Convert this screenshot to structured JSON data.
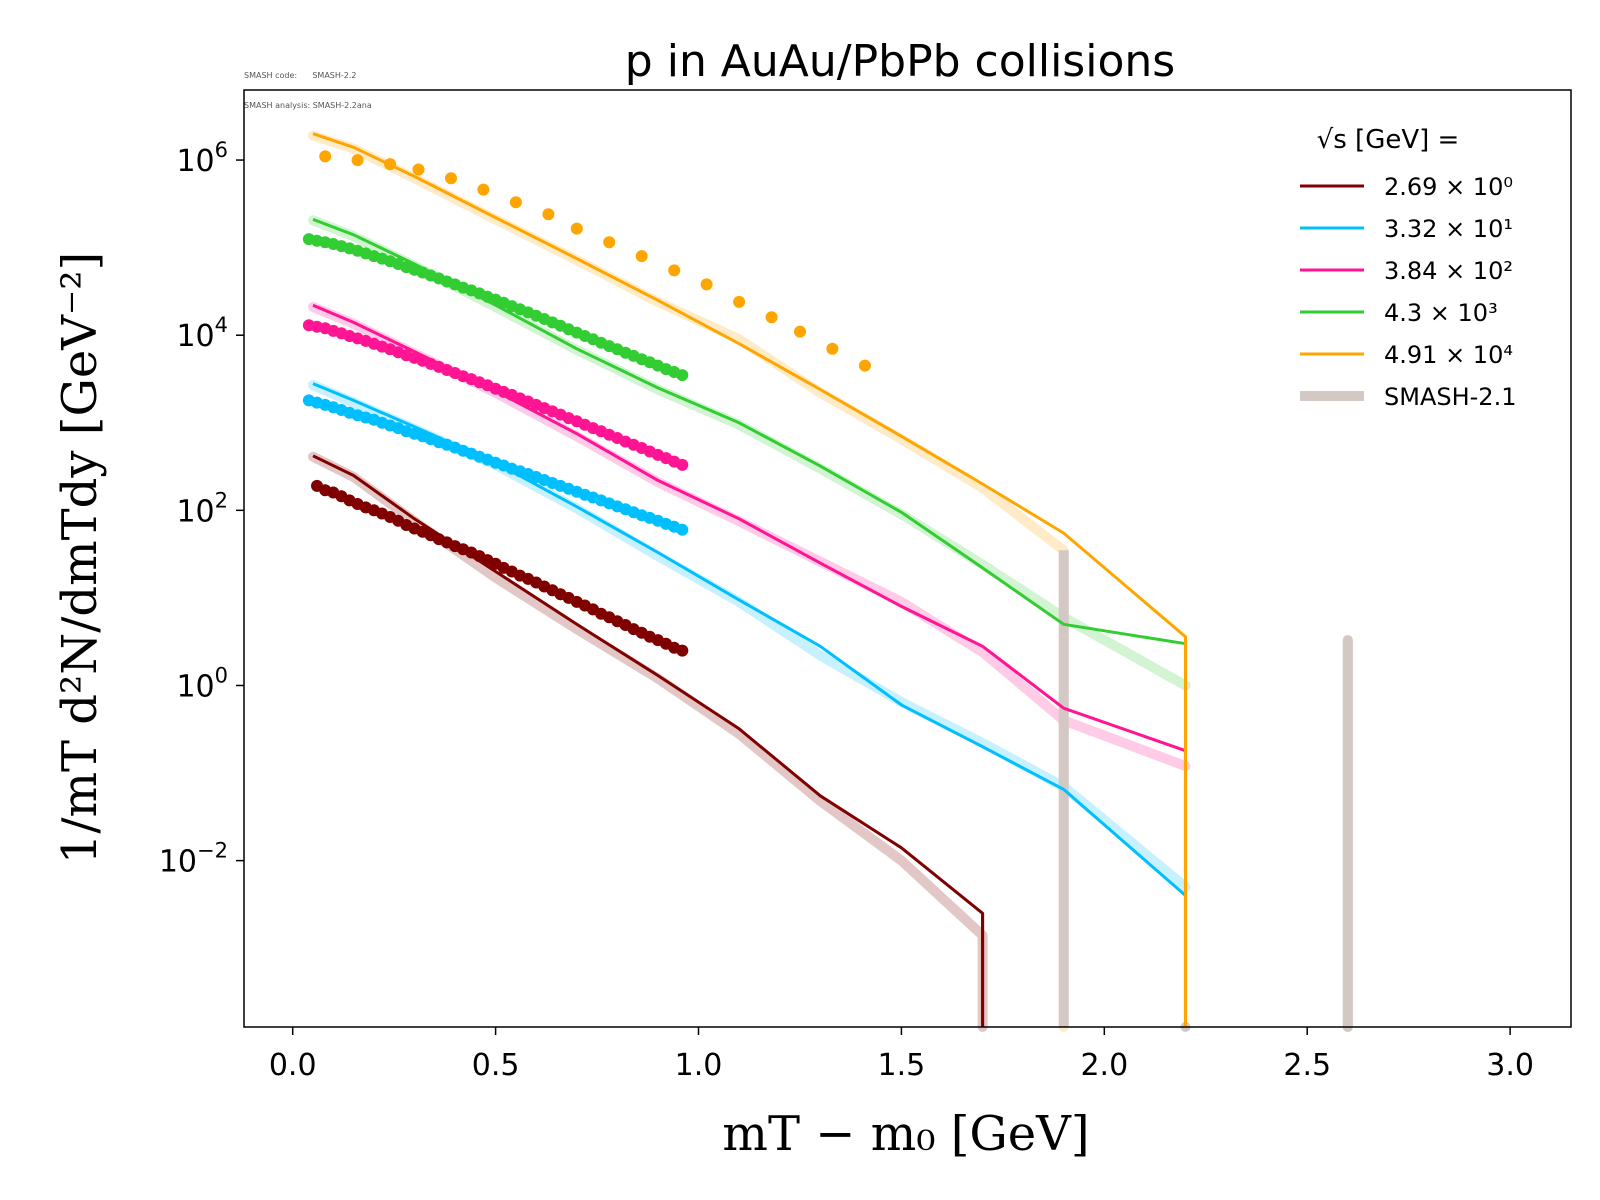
{
  "notes": {
    "code_line": "SMASH code:      SMASH-2.2",
    "analysis_line": "SMASH analysis: SMASH-2.2ana"
  },
  "chart_data": {
    "type": "line",
    "title": "p in AuAu/PbPb collisions",
    "xlabel": "mT − m₀ [GeV]",
    "ylabel": "1/mT d²N/dmTdy [GeV⁻²]",
    "xlim": [
      -0.12,
      3.15
    ],
    "ylim_log10": [
      -3.9,
      6.8
    ],
    "yscale": "log",
    "x_ticks": [
      "0.0",
      "0.5",
      "1.0",
      "1.5",
      "2.0",
      "2.5",
      "3.0"
    ],
    "y_ticks": [
      {
        "base": "10",
        "exp": "6",
        "value": 1000000
      },
      {
        "base": "10",
        "exp": "4",
        "value": 10000
      },
      {
        "base": "10",
        "exp": "2",
        "value": 100
      },
      {
        "base": "10",
        "exp": "0",
        "value": 1
      },
      {
        "base": "10",
        "exp": "−2",
        "value": 0.01
      }
    ],
    "legend": {
      "placement": "top-right",
      "title": "√s  [GeV] =",
      "entries": [
        "2.69 × 10⁰",
        "3.32 × 10¹",
        "3.84 × 10²",
        "4.3 × 10³",
        "4.91 × 10⁴",
        "SMASH-2.1"
      ]
    },
    "colors": {
      "s2_69": "#800000",
      "s33_2": "#00bfff",
      "s384": "#ff1493",
      "s4300": "#32cd32",
      "s49100": "#ffa500",
      "smash21": "#d3c8c4"
    },
    "series": [
      {
        "name": "2.69 × 10⁰",
        "color": "#800000",
        "line": {
          "x": [
            0.05,
            0.15,
            0.3,
            0.5,
            0.7,
            0.9,
            1.1,
            1.3,
            1.5,
            1.7,
            1.7
          ],
          "y": [
            420,
            250,
            80,
            20,
            5,
            1.3,
            0.32,
            0.055,
            0.014,
            0.0025,
            0.0001
          ]
        },
        "smash21": {
          "x": [
            0.05,
            0.15,
            0.3,
            0.5,
            0.7,
            0.9,
            1.1,
            1.3,
            1.5,
            1.7,
            1.7
          ],
          "y": [
            410,
            240,
            75,
            17,
            4.4,
            1.2,
            0.28,
            0.048,
            0.01,
            0.0014,
            0.0001
          ]
        },
        "points": {
          "x": [
            0.06,
            0.08,
            0.1,
            0.12,
            0.14,
            0.16,
            0.18,
            0.2,
            0.22,
            0.24,
            0.26,
            0.28,
            0.3,
            0.32,
            0.34,
            0.36,
            0.38,
            0.4,
            0.42,
            0.44,
            0.46,
            0.48,
            0.5,
            0.52,
            0.54,
            0.56,
            0.58,
            0.6,
            0.62,
            0.64,
            0.66,
            0.68,
            0.7,
            0.72,
            0.74,
            0.76,
            0.78,
            0.8,
            0.82,
            0.84,
            0.86,
            0.88,
            0.9,
            0.92,
            0.94,
            0.96
          ],
          "y": [
            190,
            170,
            160,
            145,
            130,
            118,
            108,
            100,
            92,
            84,
            76,
            68,
            62,
            57,
            52,
            47,
            43,
            39,
            36,
            33,
            30,
            27,
            24.5,
            22,
            20,
            18,
            16.5,
            15,
            13.5,
            12.2,
            11,
            10,
            9,
            8.2,
            7.4,
            6.6,
            6,
            5.4,
            4.9,
            4.4,
            4,
            3.6,
            3.3,
            3,
            2.7,
            2.5
          ]
        }
      },
      {
        "name": "3.32 × 10¹",
        "color": "#00bfff",
        "line": {
          "x": [
            0.05,
            0.15,
            0.3,
            0.5,
            0.7,
            0.9,
            1.1,
            1.3,
            1.5,
            1.7,
            1.9,
            2.2
          ],
          "y": [
            2800,
            1800,
            900,
            350,
            110,
            33,
            9.5,
            2.8,
            0.6,
            0.2,
            0.065,
            0.004
          ]
        },
        "smash21": {
          "x": [
            0.05,
            0.15,
            0.3,
            0.5,
            0.7,
            0.9,
            1.1,
            1.3,
            1.5,
            1.7,
            1.9,
            2.2
          ],
          "y": [
            2700,
            1700,
            850,
            330,
            105,
            30,
            9,
            2.2,
            0.65,
            0.22,
            0.07,
            0.005
          ]
        },
        "points": {
          "x": [
            0.04,
            0.06,
            0.08,
            0.1,
            0.12,
            0.14,
            0.16,
            0.18,
            0.2,
            0.22,
            0.24,
            0.26,
            0.28,
            0.3,
            0.32,
            0.34,
            0.36,
            0.38,
            0.4,
            0.42,
            0.44,
            0.46,
            0.48,
            0.5,
            0.52,
            0.54,
            0.56,
            0.58,
            0.6,
            0.62,
            0.64,
            0.66,
            0.68,
            0.7,
            0.72,
            0.74,
            0.76,
            0.78,
            0.8,
            0.82,
            0.84,
            0.86,
            0.88,
            0.9,
            0.92,
            0.94,
            0.96
          ],
          "y": [
            1800,
            1700,
            1600,
            1500,
            1400,
            1300,
            1220,
            1150,
            1080,
            1000,
            930,
            870,
            800,
            750,
            700,
            650,
            600,
            560,
            520,
            480,
            445,
            410,
            380,
            350,
            325,
            300,
            280,
            260,
            240,
            222,
            205,
            190,
            176,
            163,
            151,
            140,
            130,
            120,
            111,
            103,
            95,
            88,
            82,
            76,
            70,
            65,
            60
          ]
        }
      },
      {
        "name": "3.84 × 10²",
        "color": "#ff1493",
        "line": {
          "x": [
            0.05,
            0.15,
            0.3,
            0.5,
            0.7,
            0.9,
            1.1,
            1.3,
            1.5,
            1.7,
            1.9,
            2.2
          ],
          "y": [
            22000,
            14000,
            6500,
            2300,
            750,
            220,
            80,
            25,
            8,
            2.8,
            0.55,
            0.18
          ]
        },
        "smash21": {
          "x": [
            0.05,
            0.15,
            0.3,
            0.5,
            0.7,
            0.9,
            1.1,
            1.3,
            1.5,
            1.7,
            1.9,
            2.2
          ],
          "y": [
            21000,
            13500,
            6200,
            2200,
            700,
            210,
            75,
            26,
            9,
            2.4,
            0.4,
            0.12
          ]
        },
        "points": {
          "x": [
            0.04,
            0.06,
            0.08,
            0.1,
            0.12,
            0.14,
            0.16,
            0.18,
            0.2,
            0.22,
            0.24,
            0.26,
            0.28,
            0.3,
            0.32,
            0.34,
            0.36,
            0.38,
            0.4,
            0.42,
            0.44,
            0.46,
            0.48,
            0.5,
            0.52,
            0.54,
            0.56,
            0.58,
            0.6,
            0.62,
            0.64,
            0.66,
            0.68,
            0.7,
            0.72,
            0.74,
            0.76,
            0.78,
            0.8,
            0.82,
            0.84,
            0.86,
            0.88,
            0.9,
            0.92,
            0.94,
            0.96
          ],
          "y": [
            13000,
            12500,
            12000,
            11200,
            10500,
            9800,
            9200,
            8600,
            8000,
            7400,
            6900,
            6400,
            5900,
            5500,
            5100,
            4700,
            4350,
            4000,
            3700,
            3400,
            3150,
            2900,
            2680,
            2450,
            2250,
            2080,
            1900,
            1750,
            1600,
            1470,
            1350,
            1240,
            1130,
            1040,
            950,
            870,
            800,
            730,
            670,
            610,
            560,
            515,
            470,
            430,
            395,
            360,
            330
          ]
        }
      },
      {
        "name": "4.3 × 10³",
        "color": "#32cd32",
        "line": {
          "x": [
            0.05,
            0.15,
            0.3,
            0.5,
            0.7,
            0.9,
            1.1,
            1.3,
            1.5,
            1.7,
            1.9,
            2.2
          ],
          "y": [
            210000,
            140000,
            65000,
            22000,
            7000,
            2500,
            1000,
            320,
            95,
            22,
            5,
            3
          ]
        },
        "smash21": {
          "x": [
            0.05,
            0.15,
            0.3,
            0.5,
            0.7,
            0.9,
            1.1,
            1.3,
            1.5,
            1.7,
            1.9,
            2.2
          ],
          "y": [
            205000,
            135000,
            62000,
            21000,
            6800,
            2400,
            950,
            300,
            90,
            24,
            6,
            1
          ]
        },
        "points": {
          "x": [
            0.04,
            0.06,
            0.08,
            0.1,
            0.12,
            0.14,
            0.16,
            0.18,
            0.2,
            0.22,
            0.24,
            0.26,
            0.28,
            0.3,
            0.32,
            0.34,
            0.36,
            0.38,
            0.4,
            0.42,
            0.44,
            0.46,
            0.48,
            0.5,
            0.52,
            0.54,
            0.56,
            0.58,
            0.6,
            0.62,
            0.64,
            0.66,
            0.68,
            0.7,
            0.72,
            0.74,
            0.76,
            0.78,
            0.8,
            0.82,
            0.84,
            0.86,
            0.88,
            0.9,
            0.92,
            0.94,
            0.96
          ],
          "y": [
            125000,
            120000,
            115000,
            110000,
            104000,
            98000,
            92000,
            86000,
            80000,
            75000,
            70000,
            65000,
            60000,
            56000,
            52000,
            48000,
            44500,
            41000,
            38000,
            35000,
            32500,
            30000,
            27500,
            25500,
            23500,
            21500,
            19800,
            18200,
            16700,
            15300,
            14000,
            12800,
            11700,
            10700,
            9800,
            9000,
            8200,
            7500,
            6900,
            6300,
            5800,
            5300,
            4900,
            4500,
            4100,
            3800,
            3500
          ]
        }
      },
      {
        "name": "4.91 × 10⁴",
        "color": "#ffa500",
        "line": {
          "x": [
            0.05,
            0.15,
            0.3,
            0.5,
            0.7,
            0.9,
            1.1,
            1.3,
            1.5,
            1.7,
            1.9,
            2.2,
            2.2
          ],
          "y": [
            2000000,
            1400000,
            650000,
            220000,
            75000,
            25000,
            8000,
            2400,
            700,
            200,
            55,
            3.6,
            0.0001
          ]
        },
        "smash21": {
          "x": [
            0.05,
            0.15,
            0.3,
            0.5,
            0.7,
            0.9,
            1.1,
            1.3,
            1.5,
            1.7,
            1.9,
            1.9
          ],
          "y": [
            1900000,
            1350000,
            620000,
            210000,
            72000,
            24000,
            9000,
            2200,
            650,
            180,
            35,
            0.0001
          ]
        },
        "points": {
          "x": [
            0.08,
            0.16,
            0.24,
            0.31,
            0.39,
            0.47,
            0.55,
            0.63,
            0.7,
            0.78,
            0.86,
            0.94,
            1.02,
            1.1,
            1.18,
            1.25,
            1.33,
            1.41
          ],
          "y": [
            1100000,
            1000000,
            900000,
            780000,
            620000,
            460000,
            330000,
            240000,
            165000,
            115000,
            80000,
            55000,
            38000,
            24000,
            16000,
            11000,
            7000,
            4500
          ]
        }
      }
    ],
    "smash21_spikes": [
      {
        "x": 2.2,
        "y_top": 0.0001
      },
      {
        "x": 2.6,
        "y_top": 3.3
      }
    ]
  }
}
